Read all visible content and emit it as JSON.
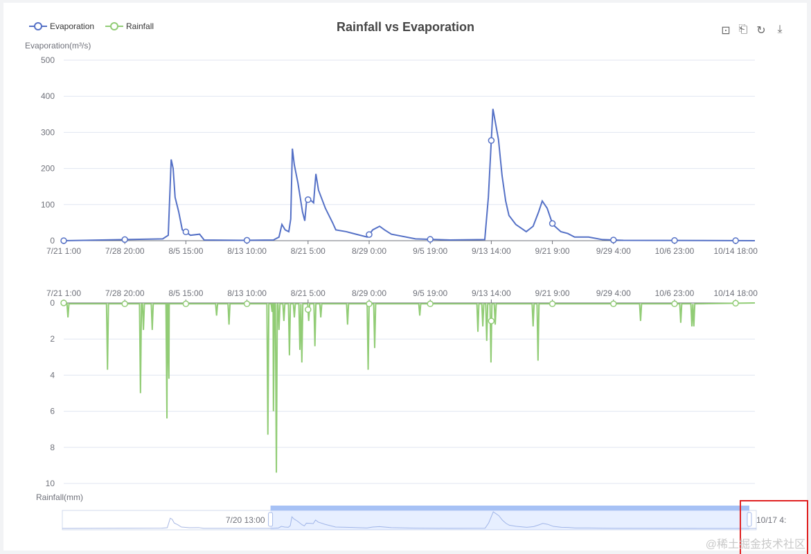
{
  "chart_data": [
    {
      "type": "line",
      "title": "Rainfall vs Evaporation",
      "series_name": "Evaporation",
      "ylabel": "Evaporation(m³/s)",
      "ylim": [
        0,
        500
      ],
      "yticks": [
        0,
        100,
        200,
        300,
        400,
        500
      ],
      "x_unit": "hours since 7/21 1:00",
      "xlim": [
        0,
        2116
      ],
      "xtick_labels": [
        "7/21 1:00",
        "7/28 20:00",
        "8/5 15:00",
        "8/13 10:00",
        "8/21 5:00",
        "8/29 0:00",
        "9/5 19:00",
        "9/13 14:00",
        "9/21 9:00",
        "9/29 4:00",
        "10/6 23:00",
        "10/14 18:00"
      ],
      "xtick_step_hours": 187,
      "color": "#5470c6",
      "points": [
        [
          0,
          0
        ],
        [
          303,
          5
        ],
        [
          320,
          15
        ],
        [
          329,
          225
        ],
        [
          335,
          200
        ],
        [
          341,
          120
        ],
        [
          352,
          80
        ],
        [
          363,
          30
        ],
        [
          373,
          25
        ],
        [
          388,
          15
        ],
        [
          416,
          18
        ],
        [
          430,
          2
        ],
        [
          547,
          1
        ],
        [
          642,
          2
        ],
        [
          659,
          10
        ],
        [
          668,
          45
        ],
        [
          678,
          30
        ],
        [
          689,
          25
        ],
        [
          695,
          60
        ],
        [
          700,
          255
        ],
        [
          706,
          210
        ],
        [
          717,
          160
        ],
        [
          731,
          80
        ],
        [
          738,
          55
        ],
        [
          744,
          115
        ],
        [
          759,
          110
        ],
        [
          765,
          105
        ],
        [
          772,
          185
        ],
        [
          780,
          140
        ],
        [
          801,
          90
        ],
        [
          823,
          50
        ],
        [
          833,
          30
        ],
        [
          865,
          25
        ],
        [
          929,
          10
        ],
        [
          946,
          30
        ],
        [
          967,
          40
        ],
        [
          982,
          30
        ],
        [
          1003,
          18
        ],
        [
          1077,
          5
        ],
        [
          1183,
          2
        ],
        [
          1289,
          3
        ],
        [
          1300,
          120
        ],
        [
          1314,
          365
        ],
        [
          1321,
          330
        ],
        [
          1331,
          280
        ],
        [
          1342,
          180
        ],
        [
          1353,
          110
        ],
        [
          1363,
          70
        ],
        [
          1384,
          45
        ],
        [
          1416,
          25
        ],
        [
          1437,
          40
        ],
        [
          1454,
          80
        ],
        [
          1465,
          110
        ],
        [
          1480,
          90
        ],
        [
          1497,
          45
        ],
        [
          1522,
          25
        ],
        [
          1543,
          20
        ],
        [
          1564,
          10
        ],
        [
          1607,
          10
        ],
        [
          1649,
          3
        ],
        [
          1713,
          1
        ],
        [
          2116,
          0
        ]
      ]
    },
    {
      "type": "line",
      "series_name": "Rainfall",
      "ylabel": "Rainfall(mm)",
      "ylim": [
        0,
        10
      ],
      "yticks": [
        0,
        2,
        4,
        6,
        8,
        10
      ],
      "inverted": true,
      "color": "#91cc75",
      "spikes": [
        [
          13,
          0.8
        ],
        [
          134,
          3.7
        ],
        [
          235,
          5.0
        ],
        [
          244,
          1.5
        ],
        [
          271,
          1.5
        ],
        [
          316,
          6.4
        ],
        [
          320,
          2.8
        ],
        [
          322,
          4.2
        ],
        [
          468,
          0.7
        ],
        [
          506,
          1.2
        ],
        [
          625,
          7.3
        ],
        [
          638,
          0.5
        ],
        [
          642,
          6.0
        ],
        [
          651,
          9.4
        ],
        [
          659,
          1.5
        ],
        [
          674,
          1.0
        ],
        [
          691,
          2.9
        ],
        [
          706,
          0.8
        ],
        [
          723,
          2.6
        ],
        [
          729,
          3.3
        ],
        [
          750,
          1.0
        ],
        [
          769,
          2.4
        ],
        [
          787,
          0.8
        ],
        [
          869,
          1.2
        ],
        [
          932,
          3.7
        ],
        [
          952,
          2.5
        ],
        [
          1090,
          0.7
        ],
        [
          1268,
          1.6
        ],
        [
          1283,
          1.3
        ],
        [
          1295,
          2.1
        ],
        [
          1308,
          3.3
        ],
        [
          1321,
          1.2
        ],
        [
          1437,
          1.3
        ],
        [
          1452,
          3.2
        ],
        [
          1766,
          1.0
        ],
        [
          1889,
          1.1
        ],
        [
          1923,
          1.3
        ],
        [
          1929,
          1.3
        ]
      ]
    }
  ],
  "legend": [
    {
      "label": "Evaporation",
      "color": "#5470c6"
    },
    {
      "label": "Rainfall",
      "color": "#91cc75"
    }
  ],
  "toolbox": [
    "data-zoom-icon",
    "zoom-reset-icon",
    "restore-icon",
    "save-image-icon"
  ],
  "datazoom": {
    "start_label": "7/20 13:00",
    "end_label": "10/17 4:",
    "start_percent": 30,
    "end_percent": 99
  },
  "watermark": "@稀土掘金技术社区"
}
